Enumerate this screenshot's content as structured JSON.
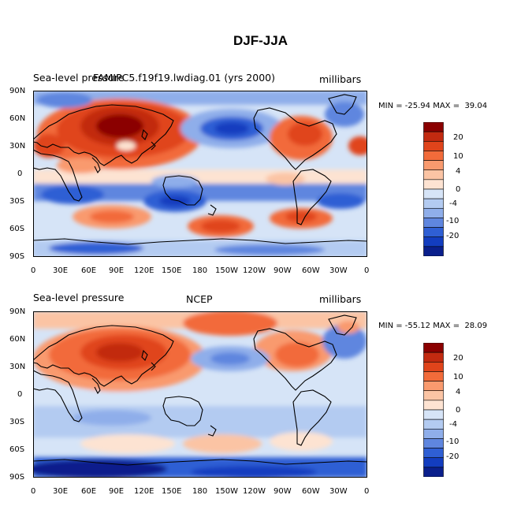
{
  "title": "DJF-JJA",
  "panels": [
    {
      "id": "top",
      "left_title": "Sea-level pressure",
      "center_title": "FAMIPC5.f19f19.lwdiag.01 (yrs 2000)",
      "units": "millibars",
      "min_max": "MIN = -25.94 MAX =  39.04"
    },
    {
      "id": "bottom",
      "left_title": "Sea-level pressure",
      "center_title": "NCEP",
      "units": "millibars",
      "min_max": "MIN = -55.12 MAX =  28.09"
    }
  ],
  "y_ticks": [
    "90N",
    "60N",
    "30N",
    "0",
    "30S",
    "60S",
    "90S"
  ],
  "x_ticks": [
    "0",
    "30E",
    "60E",
    "90E",
    "120E",
    "150E",
    "180",
    "150W",
    "120W",
    "90W",
    "60W",
    "30W",
    "0"
  ],
  "colorbar_labels": [
    "20",
    "10",
    "4",
    "0",
    "-4",
    "-10",
    "-20"
  ],
  "colorbar_colors": [
    "#8b0000",
    "#c22a10",
    "#e0441b",
    "#f26b3a",
    "#f99a6e",
    "#fbc4a4",
    "#fde3d2",
    "#d6e4f7",
    "#b3cbf1",
    "#8faeea",
    "#5f86df",
    "#2f5fd4",
    "#133dbf",
    "#0a1f8c"
  ]
}
